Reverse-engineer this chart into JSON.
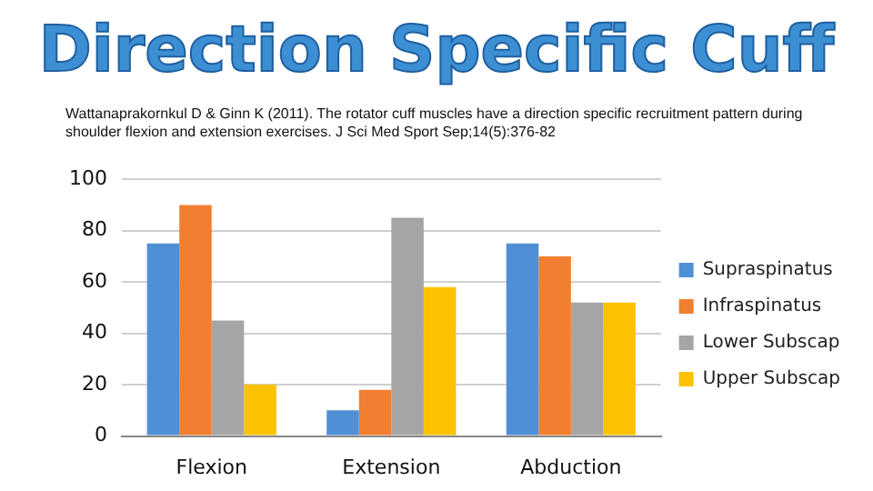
{
  "chart_data": {
    "type": "bar",
    "title": "Direction Specific Cuff",
    "annotations": [
      "Wattanaprakornkul  D & Ginn K (2011). The rotator cuff muscles  have a direction specific  recruitment pattern during shoulder flexion and extension  exercises.  J Sci Med Sport  Sep;14(5):376-82"
    ],
    "categories": [
      "Flexion",
      "Extension",
      "Abduction"
    ],
    "series": [
      {
        "name": "Supraspinatus",
        "color": "#4f8fd6",
        "values": [
          75,
          10,
          75
        ]
      },
      {
        "name": "Infraspinatus",
        "color": "#f07f30",
        "values": [
          90,
          18,
          70
        ]
      },
      {
        "name": "Lower Subscap",
        "color": "#a5a5a5",
        "values": [
          45,
          85,
          52
        ]
      },
      {
        "name": "Upper Subscap",
        "color": "#fcc200",
        "values": [
          20,
          58,
          52
        ]
      }
    ],
    "ylim": [
      0,
      100
    ],
    "yticks": [
      0,
      20,
      40,
      60,
      80,
      100
    ],
    "grid": "y",
    "legend": "right"
  }
}
